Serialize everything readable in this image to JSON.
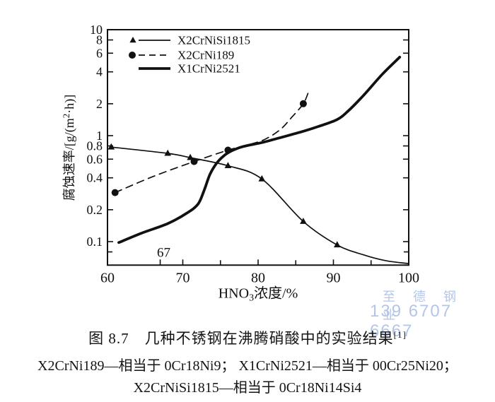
{
  "watermark": {
    "line1": "至德钢业",
    "line2": "139 6707 6667",
    "color": "#b4c6e8"
  },
  "caption": {
    "line1": "图 8.7　几种不锈钢在沸腾硝酸中的实验结果",
    "line1_superscript": "[1]",
    "line2": "X2CrNi189—相当于 0Cr18Ni9； X1CrNi2521—相当于 00Cr25Ni20；",
    "line3": "X2CrNiSi1815—相当于 0Cr18Ni14Si4"
  },
  "chart_data": {
    "type": "line",
    "title": "",
    "x_axis": {
      "label": "HNO3浓度/%",
      "label_parts": [
        "HNO",
        "3",
        "浓度/%"
      ],
      "scale": "linear",
      "lim": [
        60,
        100
      ],
      "major_ticks": [
        60,
        70,
        80,
        90,
        100
      ],
      "minor_ticks": [
        75,
        85,
        95
      ],
      "special_tick": {
        "value": 67,
        "label": "67"
      }
    },
    "y_axis": {
      "label": "腐蚀速率/[g/(m²·h)]",
      "label_parts": [
        "腐蚀速率/[g/(m",
        "2",
        "·h)]"
      ],
      "scale": "log",
      "lim": [
        0.06,
        10
      ],
      "ticks": [
        10,
        8,
        6,
        4,
        2,
        1,
        0.8,
        0.6,
        0.4,
        0.2,
        0.1
      ],
      "tick_labels": [
        "10",
        "8",
        "6",
        "4",
        "2",
        "1",
        "0.8",
        "0.6",
        "0.4",
        "0.2",
        "0.1"
      ],
      "minor_ticks": [
        0.08
      ]
    },
    "legend": {
      "position": "inside-top-left",
      "entries": [
        "X2CrNiSi1815",
        "X2CrNi189",
        "X1CrNi2521"
      ]
    },
    "grid": false,
    "series": [
      {
        "name": "X2CrNiSi1815",
        "marker": "triangle",
        "line_style": "solid",
        "line_weight": "thin",
        "points": [
          [
            60.5,
            0.78
          ],
          [
            68,
            0.68
          ],
          [
            71,
            0.62
          ],
          [
            76,
            0.52
          ],
          [
            80.5,
            0.39
          ],
          [
            86,
            0.155
          ],
          [
            90.5,
            0.093
          ]
        ],
        "curve": [
          [
            60.5,
            0.78
          ],
          [
            68,
            0.68
          ],
          [
            71,
            0.62
          ],
          [
            76,
            0.52
          ],
          [
            80.5,
            0.39
          ],
          [
            86,
            0.155
          ],
          [
            90.5,
            0.093
          ],
          [
            94,
            0.075
          ],
          [
            97,
            0.066
          ],
          [
            100,
            0.062
          ]
        ]
      },
      {
        "name": "X2CrNi189",
        "marker": "circle",
        "line_style": "dashed",
        "line_weight": "thin",
        "points": [
          [
            61,
            0.29
          ],
          [
            71.5,
            0.57
          ],
          [
            76,
            0.73
          ],
          [
            86,
            2.0
          ]
        ],
        "curve": [
          [
            61,
            0.29
          ],
          [
            66,
            0.41
          ],
          [
            71.5,
            0.57
          ],
          [
            76,
            0.73
          ],
          [
            79,
            0.83
          ],
          [
            81,
            0.93
          ],
          [
            83,
            1.15
          ],
          [
            84.5,
            1.5
          ],
          [
            86,
            2.0
          ],
          [
            86.7,
            2.6
          ]
        ]
      },
      {
        "name": "X1CrNi2521",
        "marker": "none",
        "line_style": "solid",
        "line_weight": "thick",
        "points": [],
        "curve": [
          [
            61.5,
            0.098
          ],
          [
            64.5,
            0.12
          ],
          [
            68,
            0.148
          ],
          [
            70.5,
            0.185
          ],
          [
            72,
            0.225
          ],
          [
            72.8,
            0.3
          ],
          [
            73.6,
            0.43
          ],
          [
            74.5,
            0.55
          ],
          [
            75.5,
            0.65
          ],
          [
            76.5,
            0.72
          ],
          [
            78,
            0.79
          ],
          [
            80.5,
            0.86
          ],
          [
            83,
            0.96
          ],
          [
            86,
            1.1
          ],
          [
            88,
            1.22
          ],
          [
            90.5,
            1.42
          ],
          [
            92,
            1.72
          ],
          [
            94,
            2.4
          ],
          [
            96.5,
            3.8
          ],
          [
            98.8,
            5.5
          ]
        ]
      }
    ]
  }
}
